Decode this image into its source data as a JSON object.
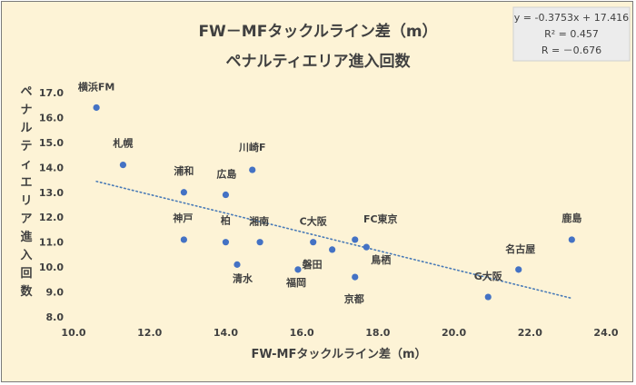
{
  "chart_data": {
    "type": "scatter",
    "title": "FW－MFタックルライン差（m）",
    "subtitle": "ペナルティエリア進入回数",
    "xlabel": "FW-MFタックルライン差（m）",
    "ylabel": "ペナルティエリア進入回数",
    "xlim": [
      10.0,
      24.0
    ],
    "ylim": [
      8.0,
      17.0
    ],
    "x_ticks": [
      "10.0",
      "12.0",
      "14.0",
      "16.0",
      "18.0",
      "20.0",
      "22.0",
      "24.0"
    ],
    "y_ticks": [
      "8.0",
      "9.0",
      "10.0",
      "11.0",
      "12.0",
      "13.0",
      "14.0",
      "15.0",
      "16.0",
      "17.0"
    ],
    "grid": false,
    "point_color": "#4472c4",
    "trendline": {
      "slope": -0.3753,
      "intercept": 17.416,
      "x_range": [
        10.6,
        23.1
      ],
      "style": "dotted",
      "color": "#4a7bb7"
    },
    "stats": [
      "y = -0.3753x + 17.416",
      "R² = 0.457",
      "R = －0.676"
    ],
    "points": [
      {
        "label": "横浜FM",
        "x": 10.6,
        "y": 16.4
      },
      {
        "label": "札幌",
        "x": 11.3,
        "y": 14.1
      },
      {
        "label": "浦和",
        "x": 12.9,
        "y": 13.0
      },
      {
        "label": "神戸",
        "x": 12.9,
        "y": 11.1
      },
      {
        "label": "広島",
        "x": 14.0,
        "y": 12.9
      },
      {
        "label": "柏",
        "x": 14.0,
        "y": 11.0
      },
      {
        "label": "清水",
        "x": 14.3,
        "y": 10.1
      },
      {
        "label": "川崎F",
        "x": 14.7,
        "y": 13.9
      },
      {
        "label": "湘南",
        "x": 14.9,
        "y": 11.0
      },
      {
        "label": "福岡",
        "x": 15.9,
        "y": 9.9
      },
      {
        "label": "C大阪",
        "x": 16.3,
        "y": 11.0
      },
      {
        "label": "磐田",
        "x": 16.8,
        "y": 10.7
      },
      {
        "label": "FC東京",
        "x": 17.4,
        "y": 11.1
      },
      {
        "label": "京都",
        "x": 17.4,
        "y": 9.6
      },
      {
        "label": "鳥栖",
        "x": 17.7,
        "y": 10.8
      },
      {
        "label": "G大阪",
        "x": 20.9,
        "y": 8.8
      },
      {
        "label": "名古屋",
        "x": 21.7,
        "y": 9.9
      },
      {
        "label": "鹿島",
        "x": 23.1,
        "y": 11.1
      }
    ]
  }
}
